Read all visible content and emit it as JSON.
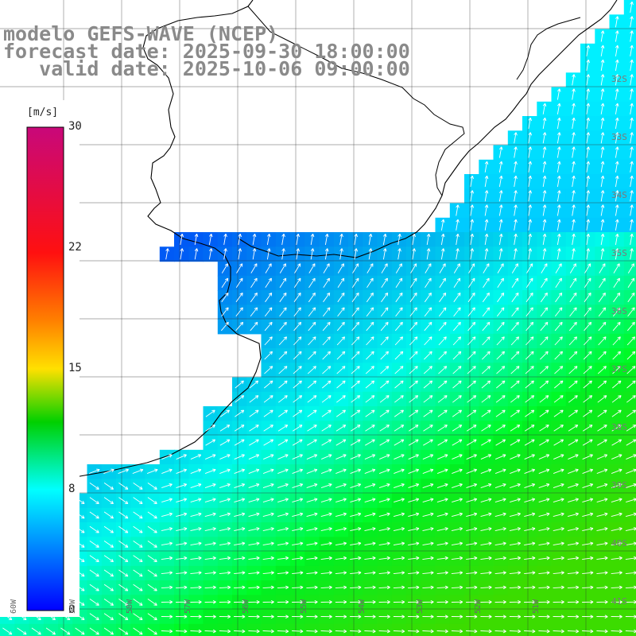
{
  "titles": {
    "line1": "modelo GEFS-WAVE (NCEP)",
    "line2": "forecast date: 2025-09-30 18:00:00",
    "line3": "   valid date: 2025-10-06 09:00:00"
  },
  "colorbar": {
    "unit": "[m/s]",
    "ticks": [
      "30",
      "22",
      "15",
      "8",
      "0"
    ],
    "colors": [
      "#c8087a",
      "#ff1010",
      "#ff8000",
      "#ffe000",
      "#00d000",
      "#00ffff",
      "#0000ff"
    ]
  },
  "lat_labels": [
    "32S",
    "33S",
    "34S",
    "35S",
    "36S",
    "37S",
    "38S",
    "39S",
    "40S",
    "41S"
  ],
  "lon_labels": [
    "60W",
    "59W",
    "58W",
    "57W",
    "56W",
    "55W",
    "54W",
    "53W",
    "52W",
    "51W"
  ],
  "map_data": {
    "variable": "wind speed",
    "units": "m/s",
    "scale_range": [
      0,
      30
    ],
    "grid": true,
    "lat_range": [
      "32S",
      "41S"
    ],
    "lon_range": [
      "60W",
      "51W"
    ]
  }
}
